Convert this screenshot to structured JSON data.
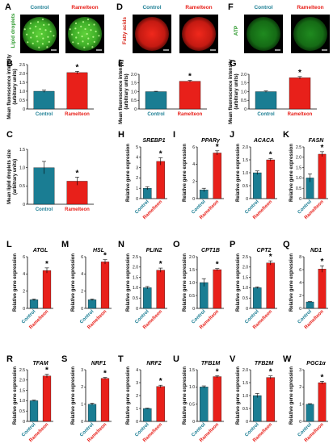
{
  "colors": {
    "control": "#1a7d93",
    "treated": "#e8201a",
    "axis": "#000000",
    "label_control": "#1a7d93",
    "label_treated": "#e8201a"
  },
  "images": [
    {
      "panel": "A",
      "side_label": "Lipid droplets",
      "side_color": "#2e9a2e",
      "left_label": "Control",
      "right_label": "Ramelteon",
      "stain": "green-speckled"
    },
    {
      "panel": "D",
      "side_label": "Fatty acids",
      "side_color": "#d8281c",
      "left_label": "Control",
      "right_label": "Ramelteon",
      "stain": "red"
    },
    {
      "panel": "F",
      "side_label": "ATP",
      "side_color": "#2e9a2e",
      "left_label": "Control",
      "right_label": "Ramelteon",
      "stain": "green-dim"
    }
  ],
  "chart_data": [
    {
      "panel": "B",
      "type": "bar",
      "title": "",
      "ylabel": "Mean fluorescence intensity (arbitrary units)",
      "categories": [
        "Control",
        "Ramelteon"
      ],
      "values": [
        1.0,
        2.05
      ],
      "errors": [
        0.06,
        0.07
      ],
      "ylim": [
        0,
        2.5
      ],
      "yticks": [
        "0",
        "0.5",
        "1.0",
        "1.5",
        "2.0",
        "2.5"
      ],
      "significance": [
        "",
        "*"
      ],
      "category_style": "horizontal"
    },
    {
      "panel": "E",
      "type": "bar",
      "title": "",
      "ylabel": "Mean fluorescence intensity (arbitrary units)",
      "categories": [
        "Control",
        "Ramelteon"
      ],
      "values": [
        1.0,
        1.6
      ],
      "errors": [
        0.02,
        0.05
      ],
      "ylim": [
        0,
        2.0
      ],
      "yticks": [
        "0",
        "0.5",
        "1.0",
        "1.5",
        "2.0"
      ],
      "significance": [
        "",
        "*"
      ],
      "category_style": "horizontal"
    },
    {
      "panel": "G",
      "type": "bar",
      "title": "",
      "ylabel": "Mean fluorescence intensity (arbitrary units)",
      "categories": [
        "Control",
        "Ramelteon"
      ],
      "values": [
        1.0,
        1.8
      ],
      "errors": [
        0.04,
        0.07
      ],
      "ylim": [
        0,
        2.0
      ],
      "yticks": [
        "0",
        "0.5",
        "1.0",
        "1.5",
        "2.0"
      ],
      "significance": [
        "",
        "*"
      ],
      "category_style": "horizontal"
    },
    {
      "panel": "C",
      "type": "bar",
      "title": "",
      "ylabel": "Mean lipid droplets size (arbitrary units)",
      "categories": [
        "Control",
        "Ramelteon"
      ],
      "values": [
        1.0,
        0.63
      ],
      "errors": [
        0.17,
        0.11
      ],
      "ylim": [
        0,
        1.5
      ],
      "yticks": [
        "0",
        "0.5",
        "1.0",
        "1.5"
      ],
      "significance": [
        "",
        "*"
      ],
      "category_style": "horizontal"
    },
    {
      "panel": "H",
      "type": "bar",
      "title": "SREBP1",
      "ylabel": "Relative gene expression",
      "categories": [
        "Control",
        "Ramelteon"
      ],
      "values": [
        1.0,
        3.6
      ],
      "errors": [
        0.15,
        0.35
      ],
      "ylim": [
        0,
        5
      ],
      "yticks": [
        "0",
        "1",
        "2",
        "3",
        "4",
        "5"
      ],
      "significance": [
        "",
        "*"
      ],
      "category_style": "angled"
    },
    {
      "panel": "I",
      "type": "bar",
      "title": "PPARγ",
      "ylabel": "Relative gene expression",
      "categories": [
        "Control",
        "Ramelteon"
      ],
      "values": [
        1.0,
        5.3
      ],
      "errors": [
        0.2,
        0.25
      ],
      "ylim": [
        0,
        6
      ],
      "yticks": [
        "0",
        "2",
        "4",
        "6"
      ],
      "significance": [
        "",
        "*"
      ],
      "category_style": "angled"
    },
    {
      "panel": "J",
      "type": "bar",
      "title": "ACACA",
      "ylabel": "Relative gene expression",
      "categories": [
        "Control",
        "Ramelteon"
      ],
      "values": [
        1.0,
        1.5
      ],
      "errors": [
        0.07,
        0.05
      ],
      "ylim": [
        0,
        2.0
      ],
      "yticks": [
        "0",
        "0.5",
        "1.0",
        "1.5",
        "2.0"
      ],
      "significance": [
        "",
        "*"
      ],
      "category_style": "angled"
    },
    {
      "panel": "K",
      "type": "bar",
      "title": "FASN",
      "ylabel": "Relative gene expression",
      "categories": [
        "Control",
        "Ramelteon"
      ],
      "values": [
        1.0,
        2.15
      ],
      "errors": [
        0.2,
        0.12
      ],
      "ylim": [
        0,
        2.5
      ],
      "yticks": [
        "0",
        "0.5",
        "1.0",
        "1.5",
        "2.0",
        "2.5"
      ],
      "significance": [
        "",
        "*"
      ],
      "category_style": "angled"
    },
    {
      "panel": "L",
      "type": "bar",
      "title": "ATGL",
      "ylabel": "Relative gene expression",
      "categories": [
        "Control",
        "Ramelteon"
      ],
      "values": [
        1.0,
        4.4
      ],
      "errors": [
        0.1,
        0.3
      ],
      "ylim": [
        0,
        6
      ],
      "yticks": [
        "0",
        "2",
        "4",
        "6"
      ],
      "significance": [
        "",
        "*"
      ],
      "category_style": "angled"
    },
    {
      "panel": "M",
      "type": "bar",
      "title": "HSL",
      "ylabel": "Relative gene expression",
      "categories": [
        "Control",
        "Ramelteon"
      ],
      "values": [
        1.0,
        5.4
      ],
      "errors": [
        0.1,
        0.25
      ],
      "ylim": [
        0,
        6
      ],
      "yticks": [
        "0",
        "2",
        "4",
        "6"
      ],
      "significance": [
        "",
        "*"
      ],
      "category_style": "angled"
    },
    {
      "panel": "N",
      "type": "bar",
      "title": "PLIN2",
      "ylabel": "Relative gene expression",
      "categories": [
        "Control",
        "Ramelteon"
      ],
      "values": [
        1.0,
        1.85
      ],
      "errors": [
        0.06,
        0.1
      ],
      "ylim": [
        0,
        2.5
      ],
      "yticks": [
        "0",
        "0.5",
        "1.0",
        "1.5",
        "2.0",
        "2.5"
      ],
      "significance": [
        "",
        "*"
      ],
      "category_style": "angled"
    },
    {
      "panel": "O",
      "type": "bar",
      "title": "CPT1B",
      "ylabel": "Relative gene expression",
      "categories": [
        "Control",
        "Ramelteon"
      ],
      "values": [
        1.0,
        1.5
      ],
      "errors": [
        0.15,
        0.04
      ],
      "ylim": [
        0,
        2.0
      ],
      "yticks": [
        "0",
        "0.5",
        "1.0",
        "1.5",
        "2.0"
      ],
      "significance": [
        "",
        "*"
      ],
      "category_style": "angled"
    },
    {
      "panel": "P",
      "type": "bar",
      "title": "CPT2",
      "ylabel": "Relative gene expression",
      "categories": [
        "Control",
        "Ramelteon"
      ],
      "values": [
        1.0,
        2.2
      ],
      "errors": [
        0.04,
        0.1
      ],
      "ylim": [
        0,
        2.5
      ],
      "yticks": [
        "0",
        "0.5",
        "1.0",
        "1.5",
        "2.0",
        "2.5"
      ],
      "significance": [
        "",
        "*"
      ],
      "category_style": "angled"
    },
    {
      "panel": "Q",
      "type": "bar",
      "title": "ND1",
      "ylabel": "Relative gene expression",
      "categories": [
        "Control",
        "Ramelteon"
      ],
      "values": [
        1.0,
        6.1
      ],
      "errors": [
        0.06,
        0.5
      ],
      "ylim": [
        0,
        8
      ],
      "yticks": [
        "0",
        "2",
        "4",
        "6",
        "8"
      ],
      "significance": [
        "",
        "*"
      ],
      "category_style": "angled"
    },
    {
      "panel": "R",
      "type": "bar",
      "title": "TFAM",
      "ylabel": "Relative gene expression",
      "categories": [
        "Control",
        "Ramelteon"
      ],
      "values": [
        1.0,
        2.2
      ],
      "errors": [
        0.03,
        0.08
      ],
      "ylim": [
        0,
        2.5
      ],
      "yticks": [
        "0",
        "0.5",
        "1.0",
        "1.5",
        "2.0",
        "2.5"
      ],
      "significance": [
        "",
        "*"
      ],
      "category_style": "angled"
    },
    {
      "panel": "S",
      "type": "bar",
      "title": "NRF1",
      "ylabel": "Relative gene expression",
      "categories": [
        "Control",
        "Ramelteon"
      ],
      "values": [
        1.0,
        2.5
      ],
      "errors": [
        0.06,
        0.05
      ],
      "ylim": [
        0,
        3
      ],
      "yticks": [
        "0",
        "1",
        "2",
        "3"
      ],
      "significance": [
        "",
        "*"
      ],
      "category_style": "angled"
    },
    {
      "panel": "T",
      "type": "bar",
      "title": "NRF2",
      "ylabel": "Relative gene expression",
      "categories": [
        "Control",
        "Ramelteon"
      ],
      "values": [
        1.0,
        2.7
      ],
      "errors": [
        0.03,
        0.1
      ],
      "ylim": [
        0,
        4
      ],
      "yticks": [
        "0",
        "1",
        "2",
        "3",
        "4"
      ],
      "significance": [
        "",
        "*"
      ],
      "category_style": "angled"
    },
    {
      "panel": "U",
      "type": "bar",
      "title": "TFB1M",
      "ylabel": "Relative gene expression",
      "categories": [
        "Control",
        "Ramelteon"
      ],
      "values": [
        1.0,
        1.3
      ],
      "errors": [
        0.03,
        0.03
      ],
      "ylim": [
        0,
        1.5
      ],
      "yticks": [
        "0",
        "0.5",
        "1.0",
        "1.5"
      ],
      "significance": [
        "",
        "*"
      ],
      "category_style": "angled"
    },
    {
      "panel": "V",
      "type": "bar",
      "title": "TFB2M",
      "ylabel": "Relative gene expression",
      "categories": [
        "Control",
        "Ramelteon"
      ],
      "values": [
        1.0,
        1.7
      ],
      "errors": [
        0.08,
        0.06
      ],
      "ylim": [
        0,
        2.0
      ],
      "yticks": [
        "0",
        "0.5",
        "1.0",
        "1.5",
        "2.0"
      ],
      "significance": [
        "",
        "*"
      ],
      "category_style": "angled"
    },
    {
      "panel": "W",
      "type": "bar",
      "title": "PGC1α",
      "ylabel": "Relative gene expression",
      "categories": [
        "Control",
        "Ramelteon"
      ],
      "values": [
        1.0,
        2.25
      ],
      "errors": [
        0.03,
        0.08
      ],
      "ylim": [
        0,
        3
      ],
      "yticks": [
        "0",
        "1",
        "2",
        "3"
      ],
      "significance": [
        "",
        "*"
      ],
      "category_style": "angled"
    }
  ]
}
